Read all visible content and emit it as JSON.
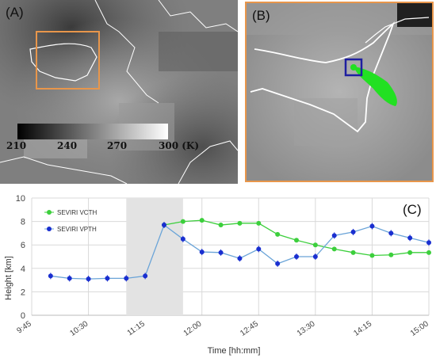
{
  "panels": {
    "a_label": "(A)",
    "b_label": "(B)",
    "c_label": "(C)"
  },
  "colorbar": {
    "ticks": [
      "210",
      "240",
      "270",
      "300 (K)"
    ]
  },
  "colors": {
    "vcth": "#3ccf3c",
    "vpth": "#1a2fd0",
    "vpth_line": "#6aa4d8",
    "shade": "#e3e3e3",
    "zoom_box": "#e8964b",
    "vent_box": "#1e1ea0",
    "plume": "#22e022"
  },
  "chart_data": {
    "type": "line",
    "xlabel": "Time [hh:mm]",
    "ylabel": "Height [km]",
    "ylim": [
      0,
      10
    ],
    "yticks": [
      "0",
      "2",
      "4",
      "6",
      "8",
      "10"
    ],
    "xlim": [
      "9:45",
      "15:00"
    ],
    "xticks": [
      "9:45",
      "10:30",
      "11:15",
      "12:00",
      "12:45",
      "13:30",
      "14:15",
      "15:00"
    ],
    "shaded_interval": [
      "11:00",
      "11:45"
    ],
    "grid": true,
    "legend_position": "top-left",
    "series": [
      {
        "name": "SEVIRI VCTH",
        "x": [
          "11:30",
          "11:45",
          "12:00",
          "12:15",
          "12:30",
          "12:45",
          "13:00",
          "13:15",
          "13:30",
          "13:45",
          "14:00",
          "14:15",
          "14:30",
          "14:45",
          "15:00"
        ],
        "values": [
          7.7,
          8.0,
          8.1,
          7.7,
          7.85,
          7.85,
          6.9,
          6.4,
          6.0,
          5.65,
          5.35,
          5.1,
          5.15,
          5.35,
          5.35
        ]
      },
      {
        "name": "SEVIRI VPTH",
        "x": [
          "10:00",
          "10:15",
          "10:30",
          "10:45",
          "11:00",
          "11:15",
          "11:30",
          "11:45",
          "12:00",
          "12:15",
          "12:30",
          "12:45",
          "13:00",
          "13:15",
          "13:30",
          "13:45",
          "14:00",
          "14:15",
          "14:30",
          "14:45",
          "15:00"
        ],
        "values": [
          3.35,
          3.15,
          3.1,
          3.15,
          3.15,
          3.35,
          7.7,
          6.5,
          5.4,
          5.35,
          4.85,
          5.65,
          4.4,
          5.0,
          5.0,
          6.8,
          7.1,
          7.6,
          7.0,
          6.6,
          6.2
        ]
      }
    ]
  }
}
